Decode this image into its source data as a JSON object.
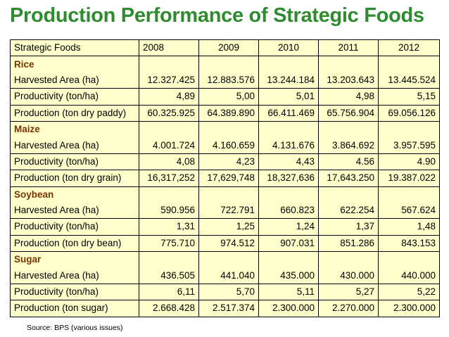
{
  "title": "Production Performance of Strategic Foods",
  "header": [
    "Strategic Foods",
    "2008",
    "2009",
    "2010",
    "2011",
    "2012"
  ],
  "groups": [
    {
      "name": "Rice",
      "rows": [
        {
          "label": "Harvested Area (ha)",
          "values": [
            "12.327.425",
            "12.883.576",
            "13.244.184",
            "13.203.643",
            "13.445.524"
          ]
        },
        {
          "label": "Productivity (ton/ha)",
          "values": [
            "4,89",
            "5,00",
            "5,01",
            "4,98",
            "5,15"
          ]
        },
        {
          "label": "Production (ton dry paddy)",
          "values": [
            "60.325.925",
            "64.389.890",
            "66.411.469",
            "65.756.904",
            "69.056.126"
          ]
        }
      ]
    },
    {
      "name": "Maize",
      "rows": [
        {
          "label": "Harvested Area (ha)",
          "values": [
            "4.001.724",
            "4.160.659",
            "4.131.676",
            "3.864.692",
            "3.957.595"
          ]
        },
        {
          "label": "Productivity (ton/ha)",
          "values": [
            "4,08",
            "4,23",
            "4,43",
            "4.56",
            "4.90"
          ]
        },
        {
          "label": "Production (ton dry grain)",
          "values": [
            "16,317,252",
            "17,629,748",
            "18,327,636",
            "17,643.250",
            "19.387.022"
          ]
        }
      ]
    },
    {
      "name": "Soybean",
      "rows": [
        {
          "label": "Harvested Area (ha)",
          "values": [
            "590.956",
            "722.791",
            "660.823",
            "622.254",
            "567.624"
          ]
        },
        {
          "label": "Productivity (ton/ha)",
          "values": [
            "1,31",
            "1,25",
            "1,24",
            "1,37",
            "1,48"
          ]
        },
        {
          "label": "Production (ton dry bean)",
          "values": [
            "775.710",
            "974.512",
            "907.031",
            "851.286",
            "843.153"
          ]
        }
      ]
    },
    {
      "name": "Sugar",
      "rows": [
        {
          "label": "Harvested Area (ha)",
          "values": [
            "436.505",
            "441.040",
            "435.000",
            "430.000",
            "440.000"
          ]
        },
        {
          "label": "Productivity (ton/ha)",
          "values": [
            "6,11",
            "5,70",
            "5,11",
            "5,27",
            "5,22"
          ]
        },
        {
          "label": "Production (ton sugar)",
          "values": [
            "2.668.428",
            "2.517.374",
            "2.300.000",
            "2.270.000",
            "2.300.000"
          ]
        }
      ]
    }
  ],
  "source": "Source: BPS (various issues)",
  "colors": {
    "title": "#2e8b2e",
    "table_bg": "#ffffcc",
    "group_label": "#7a3300"
  }
}
